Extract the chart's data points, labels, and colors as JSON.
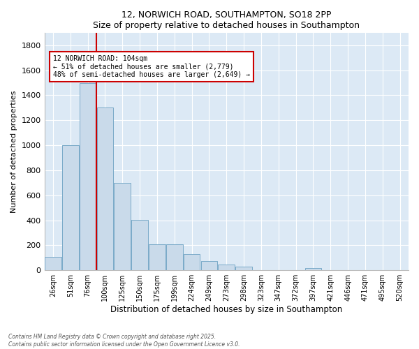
{
  "title1": "12, NORWICH ROAD, SOUTHAMPTON, SO18 2PP",
  "title2": "Size of property relative to detached houses in Southampton",
  "xlabel": "Distribution of detached houses by size in Southampton",
  "ylabel": "Number of detached properties",
  "categories": [
    "26sqm",
    "51sqm",
    "76sqm",
    "100sqm",
    "125sqm",
    "150sqm",
    "175sqm",
    "199sqm",
    "224sqm",
    "249sqm",
    "273sqm",
    "298sqm",
    "323sqm",
    "347sqm",
    "372sqm",
    "397sqm",
    "421sqm",
    "446sqm",
    "471sqm",
    "495sqm",
    "520sqm"
  ],
  "values": [
    110,
    1000,
    1500,
    1300,
    700,
    405,
    210,
    210,
    130,
    75,
    45,
    30,
    0,
    0,
    0,
    20,
    0,
    0,
    0,
    0,
    0
  ],
  "bar_color": "#c9daea",
  "bar_edge_color": "#7aaac8",
  "vline_color": "#cc0000",
  "vline_pos": 2.5,
  "annotation_text": "12 NORWICH ROAD: 104sqm\n← 51% of detached houses are smaller (2,779)\n48% of semi-detached houses are larger (2,649) →",
  "annotation_box_color": "#cc0000",
  "ylim": [
    0,
    1900
  ],
  "yticks": [
    0,
    200,
    400,
    600,
    800,
    1000,
    1200,
    1400,
    1600,
    1800
  ],
  "bg_color": "#dce9f5",
  "footnote": "Contains HM Land Registry data © Crown copyright and database right 2025.\nContains public sector information licensed under the Open Government Licence v3.0."
}
